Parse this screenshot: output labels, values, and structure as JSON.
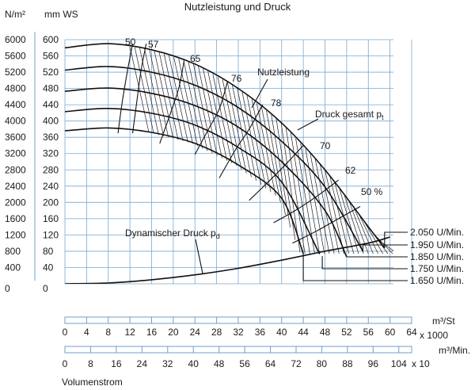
{
  "chart_data": {
    "type": "line",
    "title": "Nutzleistung und Druck",
    "y_left_outer_label": "N/m²",
    "y_left_inner_label": "mm WS",
    "y_ticks_nm2": [
      "6000",
      "5600",
      "5200",
      "4800",
      "4400",
      "4000",
      "3600",
      "3200",
      "2800",
      "2400",
      "2000",
      "1600",
      "1200",
      "800",
      "400",
      "0"
    ],
    "y_ticks_mmws": [
      "600",
      "560",
      "520",
      "480",
      "440",
      "400",
      "360",
      "320",
      "280",
      "240",
      "200",
      "160",
      "120",
      "80",
      "40",
      "0"
    ],
    "ylim_mmws": [
      0,
      600
    ],
    "xlim_m3_per_hour_x1000": [
      0,
      64
    ],
    "grid": true,
    "curve_labels": {
      "power": "Nutzleistung",
      "total_pressure": "Druck gesamt p",
      "total_pressure_sub": "t",
      "dynamic_pressure": "Dynamischer Druck p",
      "dynamic_pressure_sub": "d"
    },
    "efficiency_labels": [
      "50",
      "57",
      "65",
      "76",
      "78",
      "70",
      "62",
      "50 %"
    ],
    "series": [
      {
        "name": "2.050 U/Min.",
        "x": [
          0,
          8,
          16,
          24,
          32,
          40,
          48,
          56,
          59
        ],
        "y": [
          580,
          590,
          575,
          540,
          480,
          395,
          280,
          140,
          88
        ]
      },
      {
        "name": "1.950 U/Min.",
        "x": [
          0,
          8,
          16,
          24,
          32,
          40,
          48,
          55
        ],
        "y": [
          525,
          534,
          520,
          488,
          433,
          350,
          238,
          80
        ]
      },
      {
        "name": "1.850 U/Min.",
        "x": [
          0,
          8,
          16,
          24,
          32,
          40,
          48,
          52
        ],
        "y": [
          473,
          481,
          468,
          438,
          385,
          300,
          180,
          66
        ]
      },
      {
        "name": "1.750 U/Min.",
        "x": [
          0,
          8,
          16,
          24,
          32,
          40,
          47
        ],
        "y": [
          423,
          431,
          419,
          390,
          335,
          250,
          73
        ]
      },
      {
        "name": "1.650 U/Min.",
        "x": [
          0,
          8,
          16,
          24,
          32,
          40,
          44
        ],
        "y": [
          376,
          383,
          372,
          345,
          292,
          210,
          74
        ]
      }
    ],
    "dynamic_pressure_curve": {
      "x": [
        0,
        8,
        16,
        24,
        32,
        40,
        48,
        56,
        60
      ],
      "y": [
        0,
        2,
        10,
        22,
        38,
        58,
        80,
        100,
        115
      ]
    },
    "speed_labels": [
      "2.050 U/Min.",
      "1.950 U/Min.",
      "1.850 U/Min.",
      "1.750 U/Min.",
      "1.650 U/Min."
    ],
    "x_axis_hour": {
      "unit": "m³/St",
      "multiplier": "x 1000",
      "ticks": [
        "0",
        "4",
        "8",
        "12",
        "16",
        "20",
        "24",
        "28",
        "32",
        "36",
        "40",
        "44",
        "48",
        "52",
        "56",
        "60",
        "64"
      ]
    },
    "x_axis_min": {
      "unit": "m³/Min.",
      "multiplier": "x 10",
      "ticks": [
        "0",
        "8",
        "16",
        "24",
        "32",
        "40",
        "48",
        "56",
        "64",
        "72",
        "80",
        "88",
        "96",
        "104"
      ]
    },
    "xlabel": "Volumenstrom",
    "colors": {
      "grid": "#7aa7cf",
      "curve": "#111111"
    }
  }
}
